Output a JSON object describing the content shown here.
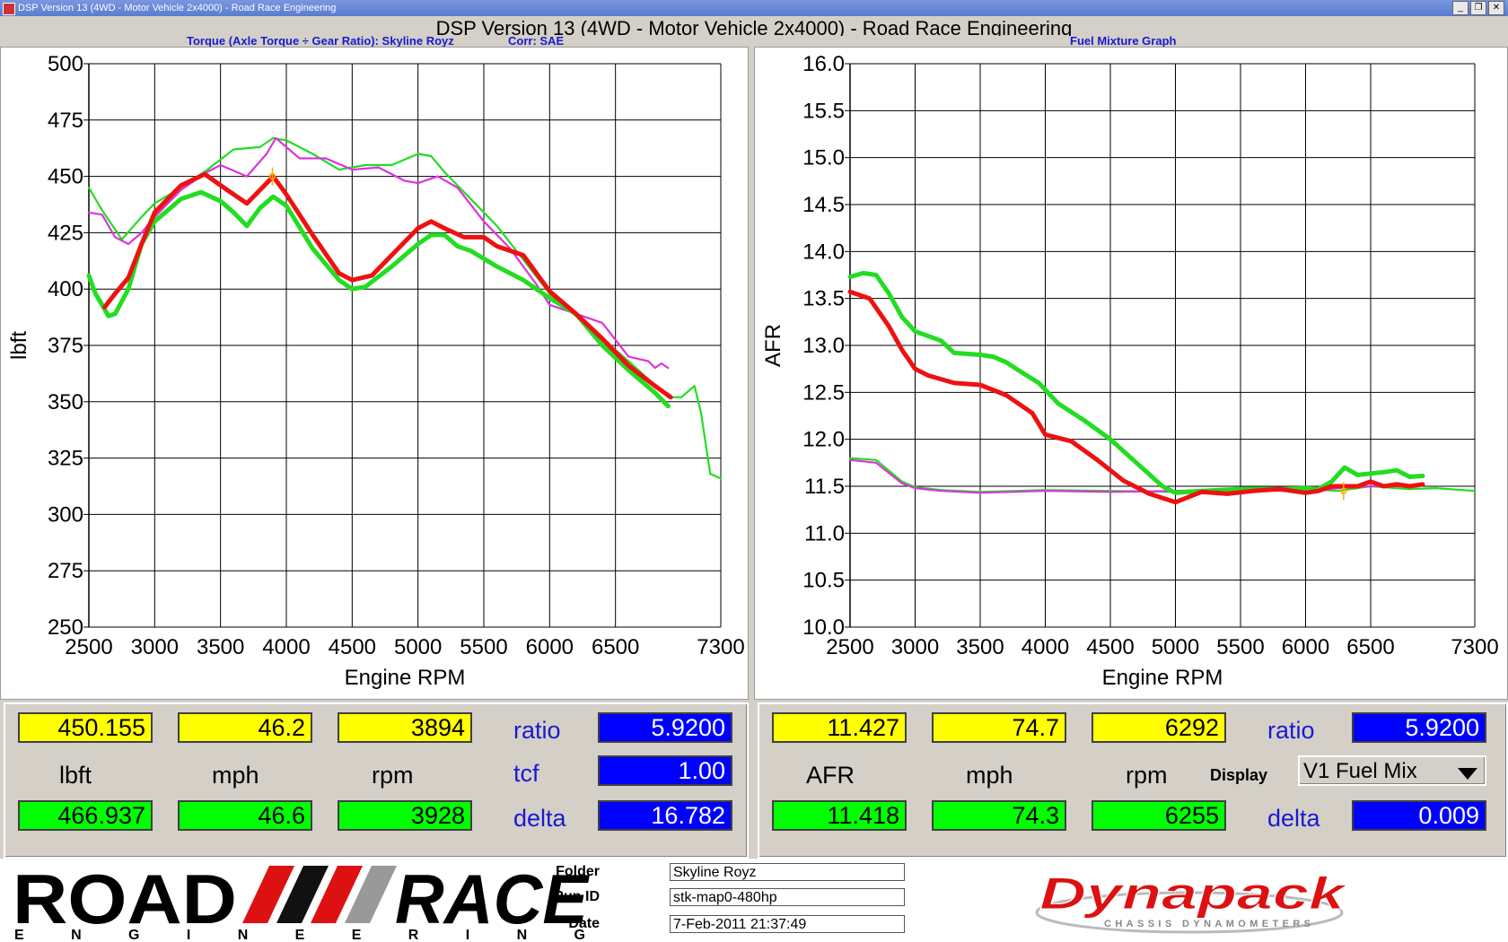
{
  "window": {
    "title": "DSP Version 13 (4WD - Motor Vehicle 2x4000) - Road Race Engineering",
    "main_title": "DSP Version 13 (4WD - Motor Vehicle 2x4000) - Road Race Engineering"
  },
  "colors": {
    "red": "#ee1111",
    "green": "#22dd22",
    "magenta": "#dd33dd",
    "grid": "#000000",
    "value_yellow": "#ffff00",
    "value_green": "#00ff00",
    "value_blue": "#0000ff"
  },
  "chart_data": [
    {
      "type": "line",
      "title": "Torque (Axle Torque ÷ Gear Ratio): Skyline Royz",
      "corr": "Corr: SAE",
      "xlabel": "Engine RPM",
      "ylabel": "lbft",
      "xlim": [
        2500,
        7300
      ],
      "ylim": [
        250,
        500
      ],
      "xticks": [
        2500,
        3000,
        3500,
        4000,
        4500,
        5000,
        5500,
        6000,
        6500,
        7300
      ],
      "yticks": [
        250,
        275,
        300,
        325,
        350,
        375,
        400,
        425,
        450,
        475,
        500
      ],
      "grid": true,
      "series": [
        {
          "color": "green",
          "width": 2.2,
          "points": [
            [
              2500,
              445
            ],
            [
              2600,
              435
            ],
            [
              2750,
              422
            ],
            [
              2900,
              432
            ],
            [
              3000,
              438
            ],
            [
              3200,
              445
            ],
            [
              3400,
              453
            ],
            [
              3600,
              462
            ],
            [
              3800,
              463
            ],
            [
              3900,
              467
            ],
            [
              4000,
              466
            ],
            [
              4200,
              460
            ],
            [
              4400,
              453
            ],
            [
              4600,
              455
            ],
            [
              4800,
              455
            ],
            [
              5000,
              460
            ],
            [
              5100,
              459
            ],
            [
              5200,
              452
            ],
            [
              5400,
              440
            ],
            [
              5600,
              428
            ],
            [
              5800,
              413
            ],
            [
              6000,
              398
            ],
            [
              6200,
              388
            ],
            [
              6400,
              378
            ],
            [
              6600,
              368
            ],
            [
              6750,
              360
            ],
            [
              6900,
              352
            ],
            [
              7000,
              352
            ],
            [
              7100,
              357
            ],
            [
              7150,
              345
            ],
            [
              7220,
              318
            ],
            [
              7300,
              316
            ]
          ]
        },
        {
          "color": "magenta",
          "width": 2.2,
          "points": [
            [
              2500,
              434
            ],
            [
              2600,
              433
            ],
            [
              2700,
              423
            ],
            [
              2800,
              420
            ],
            [
              2900,
              425
            ],
            [
              3000,
              432
            ],
            [
              3200,
              444
            ],
            [
              3400,
              452
            ],
            [
              3500,
              455
            ],
            [
              3700,
              450
            ],
            [
              3850,
              460
            ],
            [
              3920,
              467
            ],
            [
              4000,
              463
            ],
            [
              4100,
              458
            ],
            [
              4300,
              458
            ],
            [
              4500,
              453
            ],
            [
              4700,
              454
            ],
            [
              4900,
              448
            ],
            [
              5000,
              447
            ],
            [
              5150,
              450
            ],
            [
              5300,
              445
            ],
            [
              5500,
              430
            ],
            [
              5700,
              418
            ],
            [
              5900,
              402
            ],
            [
              6000,
              393
            ],
            [
              6200,
              389
            ],
            [
              6400,
              385
            ],
            [
              6600,
              370
            ],
            [
              6750,
              368
            ],
            [
              6800,
              365
            ],
            [
              6850,
              367
            ],
            [
              6900,
              365
            ]
          ]
        },
        {
          "color": "green",
          "width": 5,
          "points": [
            [
              2500,
              406
            ],
            [
              2550,
              398
            ],
            [
              2650,
              388
            ],
            [
              2700,
              389
            ],
            [
              2800,
              400
            ],
            [
              2900,
              420
            ],
            [
              3000,
              430
            ],
            [
              3200,
              440
            ],
            [
              3350,
              443
            ],
            [
              3500,
              439
            ],
            [
              3600,
              434
            ],
            [
              3700,
              428
            ],
            [
              3800,
              436
            ],
            [
              3900,
              441
            ],
            [
              4000,
              437
            ],
            [
              4200,
              418
            ],
            [
              4400,
              404
            ],
            [
              4500,
              400
            ],
            [
              4600,
              401
            ],
            [
              4800,
              410
            ],
            [
              5000,
              420
            ],
            [
              5100,
              424
            ],
            [
              5200,
              424
            ],
            [
              5300,
              419
            ],
            [
              5400,
              417
            ],
            [
              5600,
              410
            ],
            [
              5800,
              404
            ],
            [
              6000,
              396
            ],
            [
              6200,
              389
            ],
            [
              6400,
              375
            ],
            [
              6600,
              364
            ],
            [
              6800,
              354
            ],
            [
              6900,
              348
            ]
          ]
        },
        {
          "color": "red",
          "width": 5,
          "points": [
            [
              2620,
              392
            ],
            [
              2700,
              398
            ],
            [
              2800,
              405
            ],
            [
              2900,
              420
            ],
            [
              3000,
              434
            ],
            [
              3200,
              446
            ],
            [
              3380,
              451
            ],
            [
              3500,
              446
            ],
            [
              3600,
              442
            ],
            [
              3700,
              438
            ],
            [
              3800,
              444
            ],
            [
              3900,
              450
            ],
            [
              4000,
              442
            ],
            [
              4200,
              424
            ],
            [
              4400,
              407
            ],
            [
              4500,
              404
            ],
            [
              4650,
              406
            ],
            [
              4800,
              415
            ],
            [
              5000,
              427
            ],
            [
              5100,
              430
            ],
            [
              5200,
              427
            ],
            [
              5350,
              423
            ],
            [
              5500,
              423
            ],
            [
              5600,
              419
            ],
            [
              5800,
              415
            ],
            [
              6000,
              399
            ],
            [
              6200,
              389
            ],
            [
              6400,
              378
            ],
            [
              6600,
              366
            ],
            [
              6800,
              357
            ],
            [
              6920,
              352
            ]
          ]
        }
      ],
      "cursor": {
        "x": 3894,
        "y": 450
      }
    },
    {
      "type": "line",
      "title": "Fuel Mixture Graph",
      "xlabel": "Engine RPM",
      "ylabel": "AFR",
      "xlim": [
        2500,
        7300
      ],
      "ylim": [
        10.0,
        16.0
      ],
      "xticks": [
        2500,
        3000,
        3500,
        4000,
        4500,
        5000,
        5500,
        6000,
        6500,
        7300
      ],
      "yticks": [
        10.0,
        10.5,
        11.0,
        11.5,
        12.0,
        12.5,
        13.0,
        13.5,
        14.0,
        14.5,
        15.0,
        15.5,
        16.0
      ],
      "grid": true,
      "series": [
        {
          "color": "green",
          "width": 2.2,
          "points": [
            [
              2500,
              11.8
            ],
            [
              2700,
              11.78
            ],
            [
              2900,
              11.55
            ],
            [
              3000,
              11.49
            ],
            [
              3200,
              11.46
            ],
            [
              3500,
              11.44
            ],
            [
              4000,
              11.46
            ],
            [
              4500,
              11.45
            ],
            [
              5000,
              11.44
            ],
            [
              5500,
              11.46
            ],
            [
              6000,
              11.47
            ],
            [
              6250,
              11.45
            ],
            [
              6500,
              11.5
            ],
            [
              6800,
              11.47
            ],
            [
              7000,
              11.48
            ],
            [
              7300,
              11.45
            ]
          ]
        },
        {
          "color": "magenta",
          "width": 2.2,
          "points": [
            [
              2500,
              11.78
            ],
            [
              2700,
              11.75
            ],
            [
              2900,
              11.53
            ],
            [
              3000,
              11.48
            ],
            [
              3200,
              11.45
            ],
            [
              3500,
              11.43
            ],
            [
              4000,
              11.45
            ],
            [
              4500,
              11.44
            ],
            [
              5000,
              11.45
            ],
            [
              5500,
              11.47
            ],
            [
              6000,
              11.44
            ],
            [
              6250,
              11.48
            ],
            [
              6500,
              11.5
            ],
            [
              6800,
              11.5
            ]
          ]
        },
        {
          "color": "green",
          "width": 5,
          "points": [
            [
              2500,
              13.73
            ],
            [
              2600,
              13.77
            ],
            [
              2700,
              13.75
            ],
            [
              2800,
              13.55
            ],
            [
              2900,
              13.3
            ],
            [
              3000,
              13.15
            ],
            [
              3200,
              13.05
            ],
            [
              3300,
              12.92
            ],
            [
              3500,
              12.9
            ],
            [
              3600,
              12.88
            ],
            [
              3700,
              12.82
            ],
            [
              3800,
              12.73
            ],
            [
              3950,
              12.6
            ],
            [
              4100,
              12.38
            ],
            [
              4300,
              12.2
            ],
            [
              4500,
              12.0
            ],
            [
              4700,
              11.75
            ],
            [
              4900,
              11.5
            ],
            [
              5000,
              11.43
            ],
            [
              5200,
              11.45
            ],
            [
              5500,
              11.47
            ],
            [
              5800,
              11.47
            ],
            [
              6000,
              11.48
            ],
            [
              6100,
              11.47
            ],
            [
              6200,
              11.55
            ],
            [
              6300,
              11.7
            ],
            [
              6400,
              11.62
            ],
            [
              6600,
              11.65
            ],
            [
              6700,
              11.67
            ],
            [
              6800,
              11.6
            ],
            [
              6900,
              11.61
            ]
          ]
        },
        {
          "color": "red",
          "width": 5,
          "points": [
            [
              2500,
              13.57
            ],
            [
              2650,
              13.5
            ],
            [
              2800,
              13.2
            ],
            [
              2900,
              12.95
            ],
            [
              3000,
              12.75
            ],
            [
              3100,
              12.68
            ],
            [
              3300,
              12.6
            ],
            [
              3500,
              12.58
            ],
            [
              3700,
              12.47
            ],
            [
              3900,
              12.28
            ],
            [
              4000,
              12.05
            ],
            [
              4200,
              11.98
            ],
            [
              4400,
              11.78
            ],
            [
              4600,
              11.56
            ],
            [
              4800,
              11.42
            ],
            [
              5000,
              11.33
            ],
            [
              5200,
              11.44
            ],
            [
              5400,
              11.42
            ],
            [
              5600,
              11.45
            ],
            [
              5800,
              11.47
            ],
            [
              6000,
              11.43
            ],
            [
              6100,
              11.45
            ],
            [
              6200,
              11.5
            ],
            [
              6400,
              11.5
            ],
            [
              6500,
              11.55
            ],
            [
              6600,
              11.5
            ],
            [
              6700,
              11.52
            ],
            [
              6800,
              11.5
            ],
            [
              6900,
              11.52
            ]
          ]
        }
      ],
      "cursor": {
        "x": 6292,
        "y": 11.45
      }
    }
  ],
  "left_panel": {
    "cursor_value": "450.155",
    "cursor_speed": "46.2",
    "cursor_rpm": "3894",
    "unit": "lbft",
    "speed_unit": "mph",
    "rpm_unit": "rpm",
    "peak_value": "466.937",
    "peak_speed": "46.6",
    "peak_rpm": "3928",
    "ratio_label": "ratio",
    "ratio_value": "5.9200",
    "tcf_label": "tcf",
    "tcf_value": "1.00",
    "delta_label": "delta",
    "delta_value": "16.782"
  },
  "right_panel": {
    "cursor_value": "11.427",
    "cursor_speed": "74.7",
    "cursor_rpm": "6292",
    "unit": "AFR",
    "speed_unit": "mph",
    "rpm_unit": "rpm",
    "peak_value": "11.418",
    "peak_speed": "74.3",
    "peak_rpm": "6255",
    "ratio_label": "ratio",
    "ratio_value": "5.9200",
    "display_label": "Display",
    "display_selected": "V1 Fuel Mix",
    "delta_label": "delta",
    "delta_value": "0.009"
  },
  "footer": {
    "logo_left": "ROAD RACE",
    "logo_left_sub": "ENGINEERING",
    "folder_label": "Folder",
    "folder_value": "Skyline Royz",
    "runid_label": "Run ID",
    "runid_value": "stk-map0-480hp",
    "date_label": "Date",
    "date_value": "7-Feb-2011 21:37:49",
    "logo_right": "Dynapack",
    "logo_right_sub": "CHASSIS DYNAMOMETERS"
  }
}
